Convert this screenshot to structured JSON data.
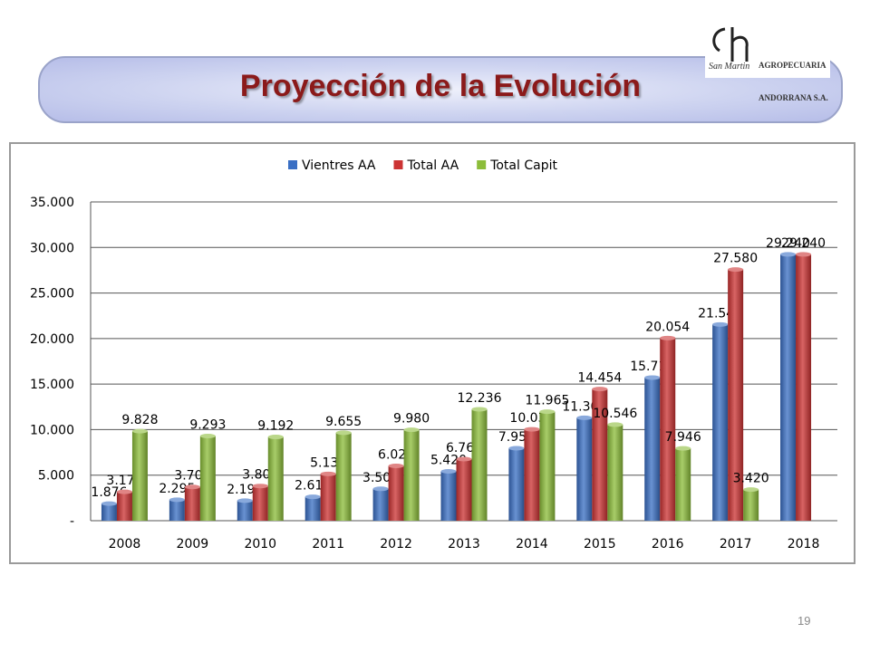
{
  "slide": {
    "title": "Proyección de la Evolución",
    "page_number": "19"
  },
  "logo": {
    "line1": "AGROPECUARIA",
    "line2": "ANDORRANA S.A.",
    "script": "San Martin"
  },
  "chart_data": {
    "type": "bar",
    "categories": [
      "2008",
      "2009",
      "2010",
      "2011",
      "2012",
      "2013",
      "2014",
      "2015",
      "2016",
      "2017",
      "2018"
    ],
    "series": [
      {
        "name": "Vientres AA",
        "color": "#3a6fc4",
        "values": [
          1876,
          2295,
          2198,
          2618,
          3500,
          5420,
          7954,
          11300,
          15715,
          21545,
          29240
        ],
        "labels": [
          "1.876",
          "2.295",
          "2.198",
          "2.618",
          "3.500",
          "5.420",
          "7.954",
          "11.300",
          "15.715",
          "21.545",
          "29.240"
        ]
      },
      {
        "name": "Total AA",
        "color": "#cc3333",
        "values": [
          3172,
          3707,
          3808,
          5138,
          6020,
          6764,
          10035,
          14454,
          20054,
          27580,
          29240
        ],
        "labels": [
          "3.172",
          "3.707",
          "3.808",
          "5.138",
          "6.020",
          "6.764",
          "10.035",
          "14.454",
          "20.054",
          "27.580",
          "29.240"
        ]
      },
      {
        "name": "Total Capit",
        "color": "#8cbd3a",
        "values": [
          9828,
          9293,
          9192,
          9655,
          9980,
          12236,
          11965,
          10546,
          7946,
          3420,
          null
        ],
        "labels": [
          "9.828",
          "9.293",
          "9.192",
          "9.655",
          "9.980",
          "12.236",
          "11.965",
          "10.546",
          "7.946",
          "3.420",
          ""
        ]
      }
    ],
    "ylim": [
      0,
      35000
    ],
    "yticks": [
      {
        "value": 0,
        "label": "-"
      },
      {
        "value": 5000,
        "label": "5.000"
      },
      {
        "value": 10000,
        "label": "10.000"
      },
      {
        "value": 15000,
        "label": "15.000"
      },
      {
        "value": 20000,
        "label": "20.000"
      },
      {
        "value": 25000,
        "label": "25.000"
      },
      {
        "value": 30000,
        "label": "30.000"
      },
      {
        "value": 35000,
        "label": "35.000"
      }
    ],
    "grid": true,
    "legend_position": "top"
  }
}
